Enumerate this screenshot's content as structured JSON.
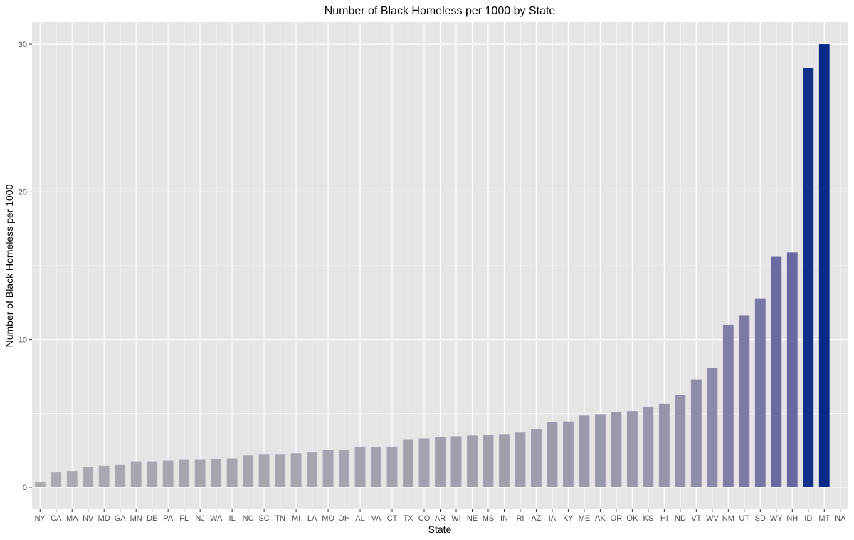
{
  "chart_data": {
    "type": "bar",
    "title": "Number of Black Homeless per 1000 by State",
    "xlabel": "State",
    "ylabel": "Number of Black Homeless per 1000",
    "categories": [
      "NY",
      "CA",
      "MA",
      "NV",
      "MD",
      "GA",
      "MN",
      "DE",
      "PA",
      "FL",
      "NJ",
      "WA",
      "IL",
      "NC",
      "SC",
      "TN",
      "MI",
      "LA",
      "MO",
      "OH",
      "AL",
      "VA",
      "CT",
      "TX",
      "CO",
      "AR",
      "WI",
      "NE",
      "MS",
      "IN",
      "RI",
      "AZ",
      "IA",
      "KY",
      "ME",
      "AK",
      "OR",
      "OK",
      "KS",
      "HI",
      "ND",
      "VT",
      "WV",
      "NM",
      "UT",
      "SD",
      "WY",
      "NH",
      "ID",
      "MT",
      "NA"
    ],
    "values": [
      0.35,
      1.0,
      1.1,
      1.35,
      1.45,
      1.5,
      1.75,
      1.75,
      1.8,
      1.85,
      1.85,
      1.9,
      1.95,
      2.15,
      2.25,
      2.25,
      2.3,
      2.35,
      2.55,
      2.55,
      2.7,
      2.7,
      2.7,
      3.25,
      3.3,
      3.4,
      3.45,
      3.5,
      3.55,
      3.6,
      3.7,
      3.95,
      4.4,
      4.45,
      4.85,
      4.95,
      5.1,
      5.15,
      5.45,
      5.65,
      6.25,
      7.3,
      8.1,
      11.0,
      11.65,
      12.75,
      15.6,
      15.9,
      28.4,
      30.0,
      null
    ],
    "ylim": [
      -1.5,
      31.5
    ],
    "yticks": [
      0,
      10,
      20,
      30
    ],
    "grid": true,
    "legend": "none",
    "colors": {
      "panel": "#e5e5e5",
      "grid": "#ffffff",
      "low": "#adadb1",
      "mid": "#6e6ba3",
      "high": "#062a85"
    }
  }
}
